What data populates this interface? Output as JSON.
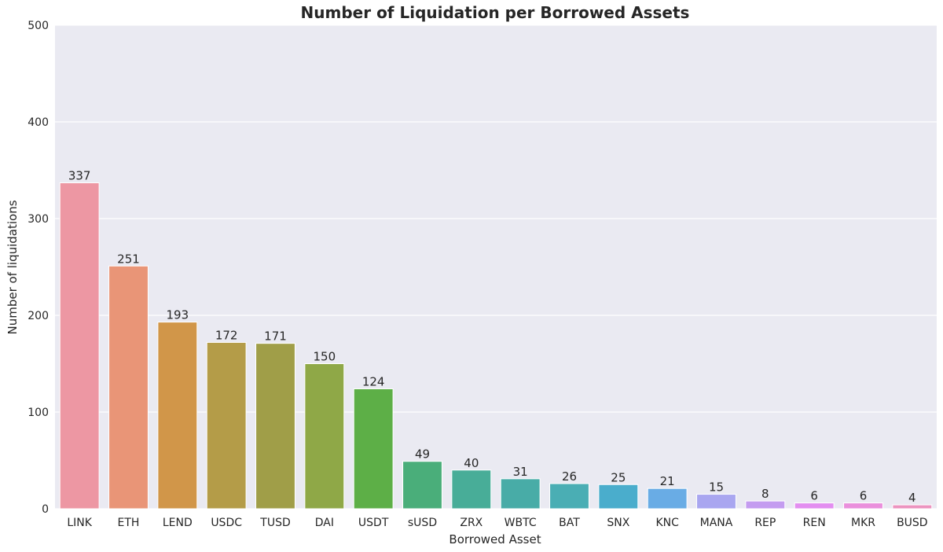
{
  "chart_data": {
    "type": "bar",
    "title": "Number of Liquidation per Borrowed Assets",
    "xlabel": "Borrowed Asset",
    "ylabel": "Number of liquidations",
    "ylim": [
      0,
      500
    ],
    "yticks": [
      0,
      100,
      200,
      300,
      400,
      500
    ],
    "grid": true,
    "categories": [
      "LINK",
      "ETH",
      "LEND",
      "USDC",
      "TUSD",
      "DAI",
      "USDT",
      "sUSD",
      "ZRX",
      "WBTC",
      "BAT",
      "SNX",
      "KNC",
      "MANA",
      "REP",
      "REN",
      "MKR",
      "BUSD"
    ],
    "values": [
      337,
      251,
      193,
      172,
      171,
      150,
      124,
      49,
      40,
      31,
      26,
      25,
      21,
      15,
      8,
      6,
      6,
      4
    ],
    "colors": [
      "#ed97a3",
      "#e99577",
      "#d19649",
      "#b49c48",
      "#a09e48",
      "#8fa847",
      "#5daf47",
      "#4aae7a",
      "#48ad98",
      "#48aca7",
      "#4aaeb4",
      "#4aadcc",
      "#69ace5",
      "#a9a6f0",
      "#c49cf0",
      "#e38ef0",
      "#ea8fdc",
      "#ec93bf"
    ]
  }
}
